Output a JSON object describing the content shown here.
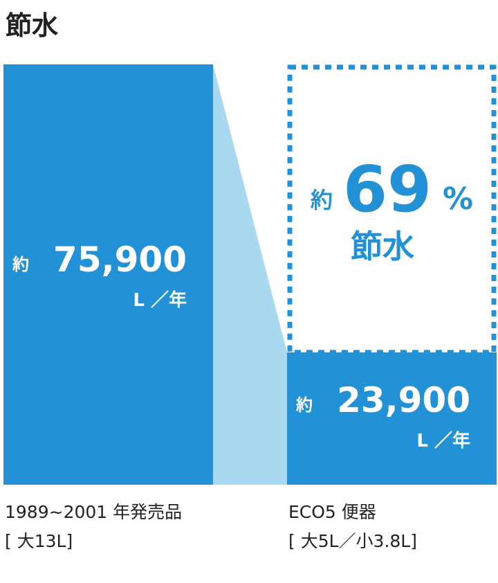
{
  "chart_data": {
    "type": "bar",
    "title": "節水",
    "categories": [
      "1989~2001 年発売品",
      "ECO5 便器"
    ],
    "category_notes": [
      "[ 大13L]",
      "[ 大5L／小3.8L]"
    ],
    "values": [
      75900,
      23900
    ],
    "value_labels": [
      "75,900",
      "23,900"
    ],
    "value_prefix": "約",
    "unit": "L ／年",
    "color": "#2391d6",
    "connector_color": "#a9d9f1",
    "saving": {
      "prefix": "約",
      "value": 69,
      "unit": "%",
      "label": "節水"
    }
  }
}
